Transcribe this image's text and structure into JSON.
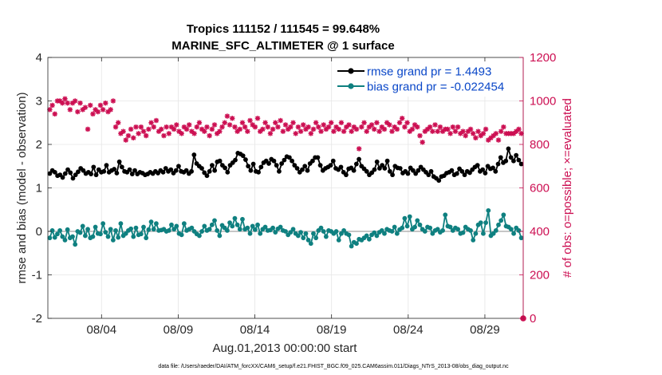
{
  "chart_data": {
    "type": "line",
    "title": "Tropics 111152 / 111545 = 99.648%",
    "subtitle": "MARINE_SFC_ALTIMETER @ 1 surface",
    "xlabel": "Aug.01,2013 00:00:00 start",
    "ylabel_left": "rmse and bias (model - observation)",
    "ylabel_right": "# of obs: o=possible; ×=evaluated",
    "x_ticks": [
      "08/04",
      "08/09",
      "08/14",
      "08/19",
      "08/24",
      "08/29"
    ],
    "x_tick_days": [
      3.5,
      8.5,
      13.5,
      18.5,
      23.5,
      28.5
    ],
    "xlim_days": [
      0,
      31
    ],
    "ylim_left": [
      -2,
      4
    ],
    "yticks_left": [
      "-2",
      "-1",
      "0",
      "1",
      "2",
      "3",
      "4"
    ],
    "ylim_right": [
      0,
      1200
    ],
    "yticks_right": [
      "0",
      "200",
      "400",
      "600",
      "800",
      "1000",
      "1200"
    ],
    "grid": true,
    "legend_position": "top-right",
    "footer": "data file: /Users/raeder/DAI/ATM_forcXX/CAM6_setup/f.e21.FHIST_BGC.f09_025.CAM6assim.011/Diags_NTrS_2013-08/obs_diag_output.nc",
    "colors": {
      "rmse": "#000000",
      "bias": "#0f8080",
      "obs": "#cc0f52",
      "zero_line": "#b3b3b3",
      "grid": "#e6e6e6",
      "legend_text": "#0a47c8"
    },
    "series": [
      {
        "name": "rmse grand pr = 1.4493",
        "axis": "left",
        "values": [
          1.33,
          1.4,
          1.36,
          1.28,
          1.3,
          1.24,
          1.33,
          1.42,
          1.35,
          1.22,
          1.3,
          1.37,
          1.45,
          1.4,
          1.33,
          1.36,
          1.32,
          1.48,
          1.3,
          1.42,
          1.36,
          1.38,
          1.52,
          1.36,
          1.4,
          1.43,
          1.34,
          1.6,
          1.48,
          1.38,
          1.36,
          1.42,
          1.32,
          1.4,
          1.32,
          1.36,
          1.34,
          1.3,
          1.32,
          1.36,
          1.33,
          1.38,
          1.34,
          1.4,
          1.36,
          1.45,
          1.38,
          1.42,
          1.34,
          1.4,
          1.5,
          1.38,
          1.36,
          1.4,
          1.33,
          1.38,
          1.76,
          1.56,
          1.5,
          1.45,
          1.35,
          1.28,
          1.38,
          1.52,
          1.4,
          1.6,
          1.62,
          1.52,
          1.46,
          1.36,
          1.52,
          1.58,
          1.64,
          1.8,
          1.78,
          1.74,
          1.65,
          1.5,
          1.4,
          1.55,
          1.38,
          1.36,
          1.48,
          1.58,
          1.62,
          1.56,
          1.66,
          1.62,
          1.52,
          1.38,
          1.56,
          1.64,
          1.72,
          1.7,
          1.62,
          1.52,
          1.45,
          1.36,
          1.42,
          1.5,
          1.4,
          1.56,
          1.62,
          1.7,
          1.7,
          1.52,
          1.4,
          1.45,
          1.48,
          1.52,
          1.62,
          1.45,
          1.42,
          1.48,
          1.36,
          1.3,
          1.44,
          1.46,
          1.4,
          1.55,
          1.66,
          1.5,
          1.44,
          1.38,
          1.3,
          1.35,
          1.42,
          1.6,
          1.45,
          1.52,
          1.45,
          1.62,
          1.38,
          1.3,
          1.5,
          1.46,
          1.45,
          1.34,
          1.38,
          1.33,
          1.46,
          1.4,
          1.33,
          1.4,
          1.48,
          1.42,
          1.36,
          1.3,
          1.38,
          1.26,
          1.22,
          1.17,
          1.26,
          1.28,
          1.34,
          1.36,
          1.4,
          1.3,
          1.33,
          1.44,
          1.38,
          1.3,
          1.38,
          1.35,
          1.42,
          1.48,
          1.52,
          1.38,
          1.42,
          1.34,
          1.5,
          1.44,
          1.46,
          1.38,
          1.55,
          1.7,
          1.58,
          1.62,
          1.9,
          1.7,
          1.62,
          1.75,
          1.64,
          1.55
        ]
      },
      {
        "name": "bias grand pr = -0.022454",
        "axis": "left",
        "values": [
          -0.15,
          0.02,
          -0.14,
          -0.06,
          0.02,
          -0.12,
          -0.2,
          0.04,
          -0.15,
          -0.12,
          -0.3,
          0.0,
          -0.03,
          0.12,
          -0.1,
          0.05,
          -0.15,
          -0.12,
          0.1,
          -0.05,
          -0.06,
          0.18,
          -0.02,
          -0.12,
          0.05,
          -0.2,
          0.02,
          -0.14,
          0.18,
          -0.1,
          -0.05,
          0.02,
          0.06,
          -0.12,
          0.08,
          -0.08,
          -0.06,
          0.1,
          -0.15,
          0.04,
          0.22,
          0.05,
          0.18,
          0.02,
          0.03,
          0.05,
          0.0,
          0.02,
          0.15,
          0.05,
          0.12,
          -0.05,
          -0.08,
          0.18,
          0.02,
          0.05,
          0.08,
          0.0,
          -0.06,
          -0.1,
          0.0,
          0.12,
          0.02,
          0.05,
          0.15,
          0.25,
          0.02,
          -0.1,
          0.14,
          0.08,
          0.02,
          0.2,
          0.12,
          0.3,
          0.15,
          0.05,
          0.28,
          0.05,
          0.08,
          -0.05,
          0.12,
          0.04,
          0.15,
          -0.05,
          0.05,
          0.1,
          0.02,
          0.03,
          0.08,
          -0.02,
          0.06,
          0.1,
          0.02,
          0.0,
          -0.08,
          -0.02,
          0.05,
          -0.05,
          -0.1,
          -0.02,
          -0.15,
          -0.05,
          -0.2,
          -0.28,
          -0.05,
          -0.15,
          0.02,
          0.08,
          0.0,
          -0.12,
          0.02,
          0.0,
          -0.05,
          0.0,
          -0.2,
          -0.05,
          0.02,
          -0.05,
          -0.08,
          -0.34,
          -0.25,
          -0.28,
          -0.18,
          -0.2,
          -0.15,
          -0.1,
          -0.18,
          -0.08,
          -0.03,
          -0.1,
          -0.02,
          0.02,
          -0.05,
          0.05,
          0.02,
          0.0,
          0.1,
          -0.05,
          0.04,
          0.08,
          0.3,
          0.12,
          0.34,
          0.05,
          0.1,
          0.25,
          0.15,
          0.05,
          0.0,
          0.1,
          0.08,
          -0.05,
          0.02,
          0.05,
          -0.02,
          0.02,
          0.38,
          0.12,
          0.1,
          0.02,
          0.08,
          0.05,
          -0.05,
          -0.03,
          0.1,
          0.05,
          0.02,
          -0.2,
          -0.05,
          0.15,
          0.2,
          -0.05,
          0.2,
          0.48,
          -0.1,
          -0.05,
          0.02,
          0.15,
          0.25,
          0.38,
          0.12,
          0.1,
          0.05,
          -0.05,
          0.08,
          0.02,
          -0.15
        ]
      },
      {
        "name": "# of obs evaluated",
        "axis": "right",
        "values": [
          960,
          980,
          940,
          1000,
          1000,
          990,
          1010,
          990,
          960,
          990,
          1000,
          950,
          990,
          960,
          970,
          870,
          980,
          940,
          960,
          950,
          980,
          960,
          990,
          950,
          960,
          1000,
          880,
          900,
          850,
          860,
          820,
          840,
          870,
          830,
          880,
          850,
          880,
          860,
          840,
          870,
          900,
          880,
          910,
          860,
          870,
          840,
          880,
          850,
          880,
          870,
          890,
          860,
          850,
          880,
          870,
          890,
          860,
          850,
          880,
          900,
          870,
          860,
          880,
          840,
          870,
          890,
          850,
          860,
          880,
          900,
          930,
          890,
          920,
          880,
          860,
          870,
          900,
          880,
          860,
          910,
          890,
          880,
          920,
          860,
          870,
          900,
          880,
          850,
          870,
          900,
          880,
          910,
          860,
          890,
          870,
          880,
          900,
          850,
          880,
          860,
          890,
          870,
          880,
          850,
          870,
          900,
          880,
          860,
          890,
          870,
          880,
          900,
          860,
          880,
          870,
          900,
          860,
          880,
          890,
          860,
          880,
          870,
          780,
          880,
          900,
          860,
          880,
          890,
          870,
          900,
          860,
          880,
          870,
          900,
          890,
          860,
          880,
          870,
          900,
          920,
          880,
          900,
          860,
          870,
          890,
          880,
          840,
          810,
          860,
          870,
          880,
          860,
          890,
          860,
          880,
          860,
          870,
          870,
          850,
          880,
          860,
          880,
          850,
          860,
          840,
          860,
          870,
          850,
          830,
          860,
          840,
          850,
          870,
          820,
          830,
          840,
          850,
          820,
          860,
          880,
          850,
          850,
          850,
          850,
          860,
          870,
          850
        ]
      },
      {
        "name": "# of obs possible",
        "axis": "right",
        "values": [
          0
        ]
      }
    ]
  }
}
